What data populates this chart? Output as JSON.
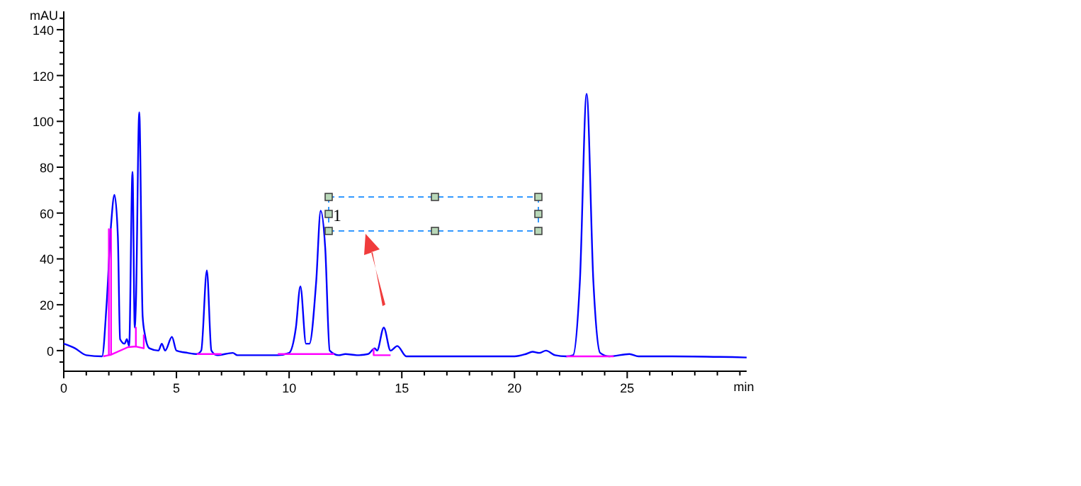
{
  "chart_data": {
    "type": "line",
    "xlabel": "min",
    "ylabel": "mAU",
    "xlim": [
      0,
      30.3
    ],
    "ylim": [
      -9,
      148
    ],
    "xticks": [
      0,
      {
        "value": 1,
        "label": null
      },
      {
        "value": 2,
        "label": null
      },
      {
        "value": 3,
        "label": null
      },
      {
        "value": 4,
        "label": null
      },
      5,
      {
        "value": 6,
        "label": null
      },
      {
        "value": 7,
        "label": null
      },
      {
        "value": 8,
        "label": null
      },
      {
        "value": 9,
        "label": null
      },
      10,
      {
        "value": 11,
        "label": null
      },
      {
        "value": 12,
        "label": null
      },
      {
        "value": 13,
        "label": null
      },
      {
        "value": 14,
        "label": null
      },
      15,
      {
        "value": 16,
        "label": null
      },
      {
        "value": 17,
        "label": null
      },
      {
        "value": 18,
        "label": null
      },
      {
        "value": 19,
        "label": null
      },
      20,
      {
        "value": 21,
        "label": null
      },
      {
        "value": 22,
        "label": null
      },
      {
        "value": 23,
        "label": null
      },
      {
        "value": 24,
        "label": null
      },
      25,
      {
        "value": 26,
        "label": null
      },
      {
        "value": 27,
        "label": null
      },
      {
        "value": 28,
        "label": null
      },
      {
        "value": 29,
        "label": null
      },
      {
        "value": 30,
        "label": null
      }
    ],
    "yticks": [
      {
        "value": -5,
        "label": null
      },
      0,
      {
        "value": 5,
        "label": null
      },
      {
        "value": 10,
        "label": null
      },
      {
        "value": 15,
        "label": null
      },
      20,
      {
        "value": 25,
        "label": null
      },
      {
        "value": 30,
        "label": null
      },
      {
        "value": 35,
        "label": null
      },
      40,
      {
        "value": 45,
        "label": null
      },
      {
        "value": 50,
        "label": null
      },
      {
        "value": 55,
        "label": null
      },
      60,
      {
        "value": 65,
        "label": null
      },
      {
        "value": 70,
        "label": null
      },
      {
        "value": 75,
        "label": null
      },
      80,
      {
        "value": 85,
        "label": null
      },
      {
        "value": 90,
        "label": null
      },
      {
        "value": 95,
        "label": null
      },
      100,
      {
        "value": 105,
        "label": null
      },
      {
        "value": 110,
        "label": null
      },
      {
        "value": 115,
        "label": null
      },
      120,
      {
        "value": 125,
        "label": null
      },
      {
        "value": 130,
        "label": null
      },
      {
        "value": 135,
        "label": null
      },
      140,
      {
        "value": 145,
        "label": null
      }
    ],
    "grid": false,
    "marker": "none",
    "line_style": "solid",
    "annotations": [
      "1"
    ],
    "series": [
      {
        "color": "#0000ff",
        "x": [
          0,
          0.5,
          1,
          1.7,
          1.9,
          2.1,
          2.25,
          2.4,
          2.5,
          2.7,
          2.8,
          2.9,
          3.05,
          3.15,
          3.2,
          3.35,
          3.5,
          3.6,
          3.8,
          4.2,
          4.35,
          4.5,
          4.8,
          5,
          5.5,
          5.9,
          6.1,
          6.35,
          6.55,
          6.8,
          7.5,
          7.7,
          8.5,
          9.5,
          10,
          10.3,
          10.5,
          10.75,
          10.9,
          11.2,
          11.4,
          11.6,
          11.8,
          12.2,
          12.5,
          13,
          13.5,
          13.8,
          13.9,
          14.2,
          14.5,
          14.8,
          15.2,
          16,
          19,
          20,
          20.5,
          20.8,
          21.1,
          21.4,
          21.8,
          22.3,
          22.6,
          22.9,
          23.2,
          23.5,
          23.8,
          24.2,
          25.1,
          25.5,
          27,
          30.3
        ],
        "values": [
          3,
          1,
          -2,
          -2.5,
          20,
          55,
          68,
          50,
          5,
          3,
          5,
          2,
          78,
          10,
          20,
          104,
          15,
          7,
          1,
          0,
          3,
          0,
          6,
          0,
          -1,
          -1.5,
          0,
          35,
          0,
          -2,
          -1,
          -2,
          -2,
          -2,
          -1,
          10,
          28,
          3,
          3,
          30,
          61,
          45,
          0,
          -2,
          -1.5,
          -2,
          -1.5,
          1,
          0,
          10,
          0,
          2,
          -2.5,
          -2.5,
          -2.5,
          -2.5,
          -1.5,
          -0.5,
          -1,
          0,
          -2,
          -2.5,
          -2,
          30,
          112,
          30,
          -1,
          -2.5,
          -1.5,
          -2.5,
          -2.5,
          -3
        ]
      },
      {
        "color": "#ff00ff",
        "x": [
          1.75,
          2,
          2,
          2,
          2.1,
          2.1,
          2.1,
          2.85,
          3.2,
          3.2,
          3.2,
          3.55,
          3.55,
          4.5,
          5.9,
          7,
          8,
          9.5,
          12,
          13,
          13.75,
          13.75,
          14.5,
          18,
          22.3,
          24.4
        ],
        "values": [
          -2.5,
          -2,
          53,
          -2,
          -1.8,
          53,
          -1.8,
          1.5,
          1.8,
          10,
          1.8,
          1,
          7,
          null,
          -1.5,
          -1.5,
          null,
          -1.5,
          -1.5,
          null,
          1,
          -2,
          -2,
          null,
          -2.5,
          -2.5
        ]
      }
    ]
  }
}
